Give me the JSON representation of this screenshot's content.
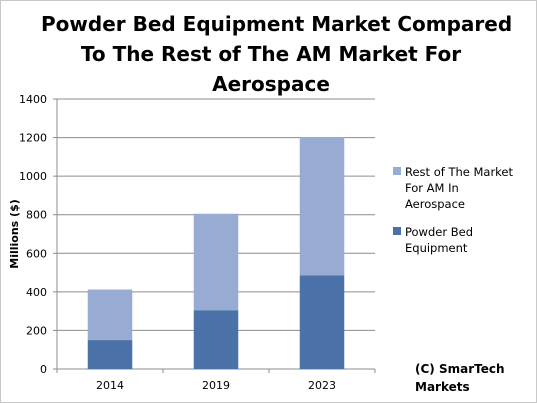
{
  "chart_data": {
    "type": "bar",
    "stacked": true,
    "title_lines": [
      "Powder Bed Equipment Market Compared",
      "To The Rest of The AM Market For",
      "Aerospace"
    ],
    "xlabel": "",
    "ylabel": "Millions ($)",
    "categories": [
      "2014",
      "2019",
      "2023"
    ],
    "ylim": [
      0,
      1400
    ],
    "yticks": [
      0,
      200,
      400,
      600,
      800,
      1000,
      1200,
      1400
    ],
    "grid": true,
    "legend_position": "right",
    "series": [
      {
        "name": "Powder Bed Equipment",
        "name_lines": [
          "Powder Bed",
          "Equipment"
        ],
        "color": "#4a72a8",
        "values": [
          150,
          305,
          485
        ]
      },
      {
        "name": "Rest of The Market For AM In Aerospace",
        "name_lines": [
          "Rest of The Market",
          "For AM In",
          "Aerospace"
        ],
        "color": "#98abd3",
        "values": [
          262,
          500,
          718
        ]
      }
    ],
    "annotation_lines": [
      "(C) SmarTech",
      "Markets"
    ]
  }
}
